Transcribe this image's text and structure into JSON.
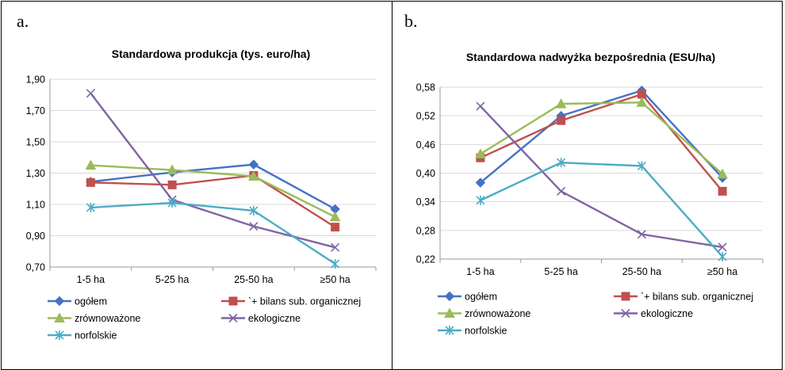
{
  "panels": [
    {
      "letter": "a."
    },
    {
      "letter": "b."
    }
  ],
  "chart_data": [
    {
      "type": "line",
      "title": "Standardowa produkcja  (tys. euro/ha)",
      "categories": [
        "1-5 ha",
        "5-25 ha",
        "25-50 ha",
        "≥50 ha"
      ],
      "ylim": [
        0.7,
        1.9
      ],
      "yticks": [
        "0,70",
        "0,90",
        "1,10",
        "1,30",
        "1,50",
        "1,70",
        "1,90"
      ],
      "grid": true,
      "legend_position": "bottom",
      "series": [
        {
          "name": "ogółem",
          "values": [
            1.245,
            1.305,
            1.355,
            1.07
          ],
          "color": "#4472C4",
          "marker": "diamond"
        },
        {
          "name": "`+ bilans sub. organicznej",
          "values": [
            1.24,
            1.225,
            1.285,
            0.955
          ],
          "color": "#C0504D",
          "marker": "square"
        },
        {
          "name": "zrównoważone",
          "values": [
            1.35,
            1.32,
            1.28,
            1.02
          ],
          "color": "#9BBB59",
          "marker": "triangle"
        },
        {
          "name": "ekologiczne",
          "values": [
            1.81,
            1.13,
            0.96,
            0.825
          ],
          "color": "#8064A2",
          "marker": "x"
        },
        {
          "name": "norfolskie",
          "values": [
            1.08,
            1.11,
            1.06,
            0.72
          ],
          "color": "#4BACC6",
          "marker": "star"
        }
      ]
    },
    {
      "type": "line",
      "title": "Standardowa nadwyżka bezpośrednia (ESU/ha)",
      "categories": [
        "1-5 ha",
        "5-25 ha",
        "25-50 ha",
        "≥50 ha"
      ],
      "ylim": [
        0.22,
        0.58
      ],
      "yticks": [
        "0,22",
        "0,28",
        "0,34",
        "0,40",
        "0,46",
        "0,52",
        "0,58"
      ],
      "grid": true,
      "legend_position": "bottom",
      "series": [
        {
          "name": "ogółem",
          "values": [
            0.38,
            0.52,
            0.573,
            0.39
          ],
          "color": "#4472C4",
          "marker": "diamond"
        },
        {
          "name": "`+ bilans sub. organicznej",
          "values": [
            0.432,
            0.51,
            0.565,
            0.362
          ],
          "color": "#C0504D",
          "marker": "square"
        },
        {
          "name": "zrównoważone",
          "values": [
            0.44,
            0.545,
            0.548,
            0.398
          ],
          "color": "#9BBB59",
          "marker": "triangle"
        },
        {
          "name": "ekologiczne",
          "values": [
            0.54,
            0.362,
            0.272,
            0.245
          ],
          "color": "#8064A2",
          "marker": "x"
        },
        {
          "name": "norfolskie",
          "values": [
            0.343,
            0.422,
            0.415,
            0.225
          ],
          "color": "#4BACC6",
          "marker": "star"
        }
      ]
    }
  ]
}
